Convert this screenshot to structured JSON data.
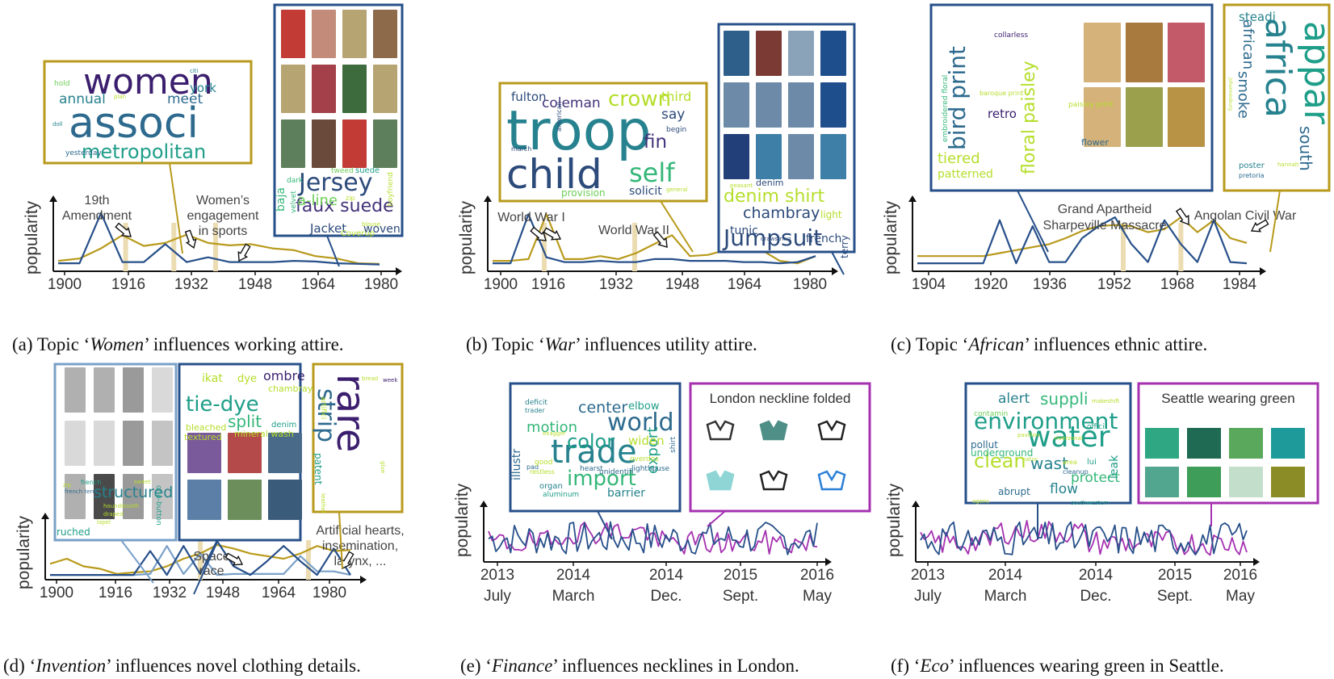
{
  "colors": {
    "social": "#b89a1c",
    "fashion": "#27508a",
    "fashion2": "#7aa0c8",
    "vision": "#a531b0",
    "event": "#ecdcb2",
    "axis": "#111111"
  },
  "ylabel": "popularity",
  "panels": [
    {
      "id": "a",
      "caption": {
        "pre": "(a) Topic ‘",
        "topic": "Women",
        "post": "’ influences working attire."
      },
      "xticks": [
        "1900",
        "1916",
        "1932",
        "1948",
        "1964",
        "1980"
      ],
      "series": [
        {
          "role": "social",
          "values": [
            0.12,
            0.16,
            0.33,
            0.55,
            0.37,
            0.42,
            0.56,
            0.42,
            0.38,
            0.4,
            0.33,
            0.3,
            0.2,
            0.16,
            0.08,
            0.07
          ]
        },
        {
          "role": "fashion",
          "values": [
            0.08,
            0.08,
            0.92,
            0.1,
            0.1,
            0.4,
            0.1,
            0.18,
            0.1,
            0.1,
            0.1,
            0.12,
            0.11,
            0.08,
            0.07,
            0.06
          ]
        }
      ],
      "events": [
        {
          "label": "19th\nAmendment",
          "pos": 0.21
        },
        {
          "label": "Women’s\nengagement\nin sports",
          "pos": 0.36
        },
        {
          "label": "",
          "pos": 0.49
        }
      ],
      "wordclouds": [
        {
          "role": "social",
          "words": [
            "women",
            "associ",
            "metropolitan",
            "annual",
            "meet",
            "york",
            "citi",
            "hold",
            "yesterday",
            "doll",
            "plan"
          ]
        },
        {
          "role": "fashion",
          "words": [
            "Jersey",
            "faux suede",
            "a-line",
            "Jacket",
            "woven",
            "baja",
            "velvet",
            "dark",
            "tweed",
            "suede",
            "zip",
            "boyfriend",
            "Coverup",
            "blouse"
          ]
        }
      ]
    },
    {
      "id": "b",
      "caption": {
        "pre": "(b) Topic ‘",
        "topic": "War",
        "post": "’ influences utility attire."
      },
      "xticks": [
        "1900",
        "1916",
        "1932",
        "1948",
        "1964",
        "1980"
      ],
      "series": [
        {
          "role": "social",
          "values": [
            0.12,
            0.12,
            0.15,
            0.9,
            0.15,
            0.15,
            0.2,
            0.15,
            0.25,
            0.4,
            0.55,
            0.2,
            0.22,
            0.3,
            0.35,
            0.3,
            0.12,
            0.08,
            0.2
          ]
        },
        {
          "role": "fashion",
          "values": [
            0.08,
            0.08,
            0.9,
            0.18,
            0.1,
            0.1,
            0.12,
            0.1,
            0.1,
            0.15,
            0.15,
            0.12,
            0.12,
            0.12,
            0.1,
            0.1,
            0.08,
            0.1,
            0.2
          ]
        }
      ],
      "events": [
        {
          "label": "World War I",
          "pos": 0.16
        },
        {
          "label": "World War II",
          "pos": 0.44
        }
      ],
      "wordclouds": [
        {
          "role": "social",
          "words": [
            "troop",
            "child",
            "self",
            "crown",
            "coleman",
            "fulton",
            "fin",
            "say",
            "third",
            "solicit",
            "provision",
            "begin",
            "general",
            "american",
            "march"
          ]
        },
        {
          "role": "fashion",
          "words": [
            "Jumpsuit",
            "denim shirt",
            "chambray",
            "light",
            "tunic",
            "french",
            "terry",
            "denim",
            "drawstring",
            "peasant"
          ]
        }
      ]
    },
    {
      "id": "c",
      "caption": {
        "pre": "(c) Topic ‘",
        "topic": "African",
        "post": "’ influences ethnic attire."
      },
      "xticks": [
        "1904",
        "1920",
        "1936",
        "1952",
        "1968",
        "1984"
      ],
      "series": [
        {
          "role": "social",
          "values": [
            0.2,
            0.2,
            0.2,
            0.2,
            0.2,
            0.25,
            0.3,
            0.35,
            0.4,
            0.5,
            0.62,
            0.7,
            0.72,
            0.7,
            0.6,
            0.65,
            0.85,
            0.6,
            0.8,
            0.5,
            0.42
          ]
        },
        {
          "role": "fashion",
          "values": [
            0.08,
            0.08,
            0.08,
            0.08,
            0.08,
            0.8,
            0.08,
            0.7,
            0.1,
            0.1,
            0.5,
            0.7,
            0.85,
            0.4,
            0.1,
            0.8,
            0.4,
            0.1,
            0.8,
            0.1,
            0.08
          ]
        }
      ],
      "events": [
        {
          "label": "Grand Apartheid\nSharpeville Massacre",
          "pos": 0.625
        },
        {
          "label": "Angolan Civil War",
          "pos": 0.8
        }
      ],
      "wordclouds": [
        {
          "role": "fashion",
          "words": [
            "bird print",
            "floral paisley",
            "retro",
            "tiered",
            "patterned",
            "embroidered floral",
            "collarless",
            "baroque print",
            "paisley print",
            "flower"
          ]
        },
        {
          "role": "social",
          "words": [
            "appar",
            "africa",
            "african",
            "south",
            "smoke",
            "steadi",
            "poster",
            "pretoria",
            "johannesburg",
            "hannah"
          ]
        }
      ]
    },
    {
      "id": "d",
      "caption": {
        "pre": "(d) ‘",
        "topic": "Invention",
        "post": "’ influences novel clothing details."
      },
      "xticks": [
        "1900",
        "1916",
        "1932",
        "1948",
        "1964",
        "1980"
      ],
      "series": [
        {
          "role": "social",
          "values": [
            0.25,
            0.35,
            0.2,
            0.15,
            0.05,
            0.08,
            0.1,
            0.2,
            0.35,
            0.45,
            0.62,
            0.55,
            0.45,
            0.4,
            0.35,
            0.45,
            0.6,
            0.5,
            0.52
          ]
        },
        {
          "role": "fashion",
          "values": [
            0.03,
            0.03,
            0.03,
            0.03,
            0.03,
            0.03,
            0.5,
            0.03,
            0.6,
            0.05,
            0.7,
            0.2,
            0.03,
            0.3,
            0.6,
            0.3,
            0.03,
            0.55,
            0.03
          ]
        },
        {
          "role": "fashion2",
          "values": [
            0.03,
            0.03,
            0.03,
            0.03,
            0.03,
            0.03,
            0.05,
            0.6,
            0.05,
            0.45,
            0.03,
            0.05,
            0.05,
            0.05,
            0.05,
            0.4,
            0.1,
            0.1,
            0.03
          ]
        }
      ],
      "events": [
        {
          "label": "Space\nrace",
          "pos": 0.5
        },
        {
          "label": "Artificial hearts,\ninsemination,\nlarynx, ...",
          "pos": 0.86
        }
      ],
      "wordclouds": [
        {
          "role": "fashion2",
          "words": [
            "structured",
            "french",
            "zip",
            "french terry",
            "houndstooth",
            "draped",
            "lapel",
            "ruched",
            "one-button",
            "sweet"
          ]
        },
        {
          "role": "fashion",
          "words": [
            "tie-dye",
            "split",
            "ikat",
            "dye",
            "ombre",
            "chambray",
            "textured",
            "bleached",
            "denim",
            "mineral wash"
          ]
        },
        {
          "role": "social",
          "words": [
            "rare",
            "strip",
            "patent",
            "artifici",
            "leather",
            "week",
            "bread",
            "glue"
          ]
        }
      ]
    },
    {
      "id": "e",
      "caption": {
        "pre": "(e) ‘",
        "topic": "Finance",
        "post": "’ influences necklines in London."
      },
      "xticks": [
        "2013\nJuly",
        "2014\nMarch",
        "2014\nDec.",
        "2015\nSept.",
        "2016\nMay"
      ],
      "vision_title": "London neckline folded",
      "series": [
        {
          "role": "fashion",
          "values": []
        },
        {
          "role": "vision",
          "values": []
        }
      ],
      "wordclouds": [
        {
          "role": "fashion",
          "words": [
            "trade",
            "world",
            "color",
            "import",
            "export",
            "center",
            "elbow",
            "motion",
            "widen",
            "illustr",
            "barrier",
            "organ",
            "aluminum",
            "shirt",
            "deficit",
            "trader",
            "exagger",
            "hearst",
            "lighthouse",
            "unidentifi",
            "overdos",
            "pad",
            "good",
            "restless"
          ]
        }
      ]
    },
    {
      "id": "f",
      "caption": {
        "pre": "(f) ‘",
        "topic": "Eco",
        "post": "’ influences wearing green in Seattle."
      },
      "xticks": [
        "2013\nJuly",
        "2014\nMarch",
        "2014\nDec.",
        "2015\nSept.",
        "2016\nMay"
      ],
      "vision_title": "Seattle wearing green",
      "series": [
        {
          "role": "fashion",
          "values": []
        },
        {
          "role": "vision",
          "values": []
        }
      ],
      "wordclouds": [
        {
          "role": "fashion",
          "words": [
            "water",
            "environment",
            "clean",
            "suppli",
            "alert",
            "wast",
            "flow",
            "protect",
            "leak",
            "underground",
            "pollut",
            "abrupt",
            "contamin",
            "pavilion",
            "riverzonal",
            "makeshift",
            "cleanup",
            "area",
            "natur",
            "offici",
            "southwestern",
            "agenc",
            "lui"
          ]
        }
      ],
      "swatches": [
        "#2fa783",
        "#1f6a52",
        "#5aa85c",
        "#1f9a9a",
        "#52a58e",
        "#3f9d5a",
        "#c3dfcb",
        "#8c8c26"
      ]
    }
  ]
}
